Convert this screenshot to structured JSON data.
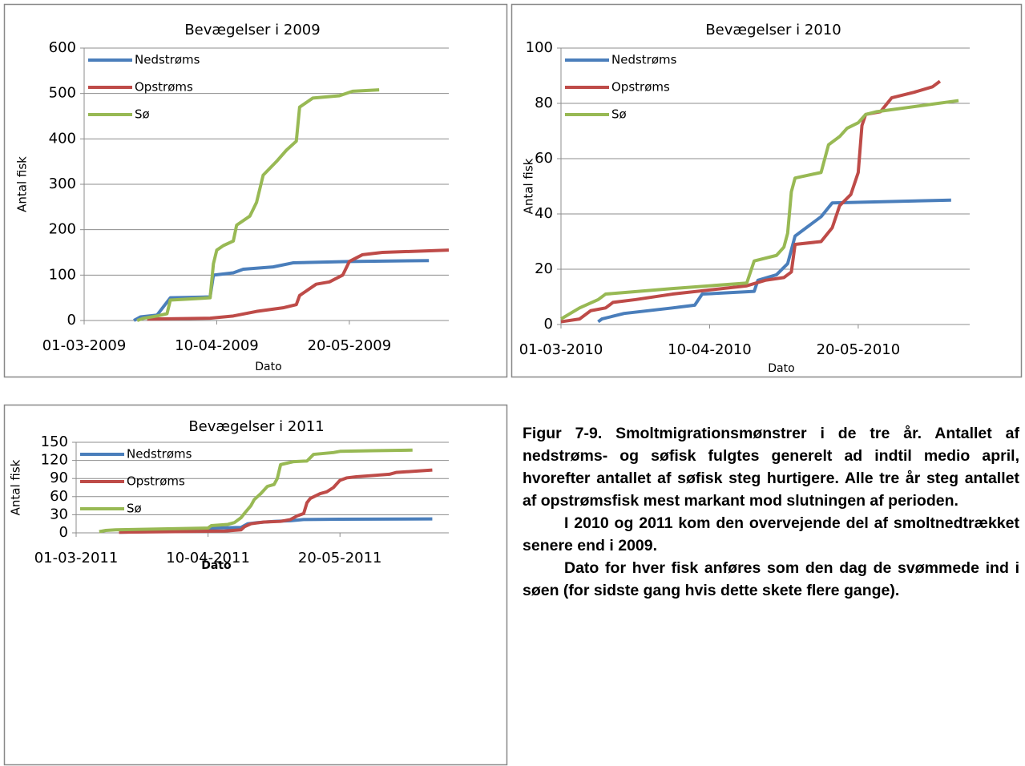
{
  "chart_data": [
    {
      "type": "line",
      "title": "Bevægelser i 2009",
      "xlabel": "Dato",
      "ylabel": "Antal fisk",
      "xlim": [
        "01-03-2009",
        "19-06-2009"
      ],
      "xticks": [
        "01-03-2009",
        "10-04-2009",
        "20-05-2009"
      ],
      "ylim": [
        0,
        600
      ],
      "yticks": [
        0,
        100,
        200,
        300,
        400,
        500,
        600
      ],
      "grid": true,
      "legend": "upper left",
      "series": [
        {
          "name": "Nedstrøms",
          "color": "#4a7ebb",
          "x": [
            "16-03-2009",
            "18-03-2009",
            "23-03-2009",
            "27-03-2009",
            "08-04-2009",
            "09-04-2009",
            "15-04-2009",
            "18-04-2009",
            "27-04-2009",
            "03-05-2009",
            "20-05-2009",
            "13-06-2009"
          ],
          "values": [
            0,
            8,
            12,
            50,
            52,
            100,
            105,
            113,
            118,
            127,
            130,
            132
          ]
        },
        {
          "name": "Opstrøms",
          "color": "#be4b48",
          "x": [
            "20-03-2009",
            "08-04-2009",
            "15-04-2009",
            "22-04-2009",
            "30-04-2009",
            "04-05-2009",
            "05-05-2009",
            "10-05-2009",
            "14-05-2009",
            "18-05-2009",
            "20-05-2009",
            "24-05-2009",
            "30-05-2009",
            "19-06-2009"
          ],
          "values": [
            3,
            5,
            10,
            20,
            28,
            35,
            55,
            80,
            85,
            100,
            130,
            145,
            150,
            155
          ]
        },
        {
          "name": "Sø",
          "color": "#98b954",
          "x": [
            "17-03-2009",
            "19-03-2009",
            "23-03-2009",
            "26-03-2009",
            "27-03-2009",
            "08-04-2009",
            "09-04-2009",
            "10-04-2009",
            "12-04-2009",
            "15-04-2009",
            "16-04-2009",
            "20-04-2009",
            "22-04-2009",
            "24-04-2009",
            "28-04-2009",
            "01-05-2009",
            "04-05-2009",
            "05-05-2009",
            "09-05-2009",
            "17-05-2009",
            "21-05-2009",
            "29-05-2009"
          ],
          "values": [
            0,
            5,
            10,
            15,
            45,
            50,
            125,
            155,
            165,
            175,
            210,
            230,
            260,
            320,
            350,
            375,
            395,
            470,
            490,
            495,
            505,
            508
          ]
        }
      ]
    },
    {
      "type": "line",
      "title": "Bevægelser i 2010",
      "xlabel": "Dato",
      "ylabel": "Antal fisk",
      "xlim": [
        "01-03-2010",
        "19-06-2010"
      ],
      "xticks": [
        "01-03-2010",
        "10-04-2010",
        "20-05-2010"
      ],
      "ylim": [
        0,
        100
      ],
      "yticks": [
        0,
        20,
        40,
        60,
        80,
        100
      ],
      "grid": true,
      "legend": "upper left",
      "series": [
        {
          "name": "Nedstrøms",
          "color": "#4a7ebb",
          "x": [
            "11-03-2010",
            "12-03-2010",
            "18-03-2010",
            "31-03-2010",
            "06-04-2010",
            "08-04-2010",
            "22-04-2010",
            "23-04-2010",
            "28-04-2010",
            "01-05-2010",
            "03-05-2010",
            "06-05-2010",
            "10-05-2010",
            "13-05-2010",
            "14-06-2010"
          ],
          "values": [
            1,
            2,
            4,
            6,
            7,
            11,
            12,
            16,
            18,
            22,
            32,
            35,
            39,
            44,
            45
          ]
        },
        {
          "name": "Opstrøms",
          "color": "#be4b48",
          "x": [
            "01-03-2010",
            "06-03-2010",
            "09-03-2010",
            "13-03-2010",
            "15-03-2010",
            "21-03-2010",
            "31-03-2010",
            "20-04-2010",
            "25-04-2010",
            "30-04-2010",
            "02-05-2010",
            "03-05-2010",
            "10-05-2010",
            "13-05-2010",
            "15-05-2010",
            "18-05-2010",
            "20-05-2010",
            "21-05-2010",
            "22-05-2010",
            "26-05-2010",
            "29-05-2010",
            "04-06-2010",
            "09-06-2010",
            "11-06-2010"
          ],
          "values": [
            1,
            2,
            5,
            6,
            8,
            9,
            11,
            14,
            16,
            17,
            19,
            29,
            30,
            35,
            43,
            47,
            55,
            72,
            76,
            77,
            82,
            84,
            86,
            88
          ]
        },
        {
          "name": "Sø",
          "color": "#98b954",
          "x": [
            "01-03-2010",
            "06-03-2010",
            "11-03-2010",
            "13-03-2010",
            "31-03-2010",
            "20-04-2010",
            "22-04-2010",
            "28-04-2010",
            "30-04-2010",
            "01-05-2010",
            "02-05-2010",
            "03-05-2010",
            "10-05-2010",
            "12-05-2010",
            "15-05-2010",
            "17-05-2010",
            "20-05-2010",
            "22-05-2010",
            "25-05-2010",
            "16-06-2010"
          ],
          "values": [
            2,
            6,
            9,
            11,
            13,
            15,
            23,
            25,
            28,
            33,
            48,
            53,
            55,
            65,
            68,
            71,
            73,
            76,
            77,
            81
          ]
        }
      ]
    },
    {
      "type": "line",
      "title": "Bevægelser i 2011",
      "xlabel": "Dato",
      "ylabel": "Antal fisk",
      "xlim": [
        "01-03-2011",
        "22-06-2011"
      ],
      "xticks": [
        "01-03-2011",
        "10-04-2011",
        "20-05-2011"
      ],
      "ylim": [
        0,
        150
      ],
      "yticks": [
        0,
        30,
        60,
        90,
        120,
        150
      ],
      "grid": true,
      "legend": "upper left",
      "series": [
        {
          "name": "Nedstrøms",
          "color": "#4a7ebb",
          "x": [
            "14-03-2011",
            "31-03-2011",
            "10-04-2011",
            "12-04-2011",
            "20-04-2011",
            "22-04-2011",
            "25-04-2011",
            "30-04-2011",
            "05-05-2011",
            "09-05-2011",
            "20-05-2011",
            "17-06-2011"
          ],
          "values": [
            1,
            3,
            6,
            8,
            9,
            15,
            17,
            19,
            20,
            22,
            22.5,
            23
          ]
        },
        {
          "name": "Opstrøms",
          "color": "#be4b48",
          "x": [
            "14-03-2011",
            "31-03-2011",
            "15-04-2011",
            "20-04-2011",
            "21-04-2011",
            "23-04-2011",
            "27-04-2011",
            "02-05-2011",
            "05-05-2011",
            "07-05-2011",
            "09-05-2011",
            "10-05-2011",
            "11-05-2011",
            "14-05-2011",
            "16-05-2011",
            "18-05-2011",
            "20-05-2011",
            "22-05-2011",
            "25-05-2011",
            "30-05-2011",
            "04-06-2011",
            "06-06-2011",
            "17-06-2011"
          ],
          "values": [
            1,
            2,
            3,
            5,
            10,
            15,
            18,
            19,
            22,
            28,
            32,
            50,
            57,
            65,
            68,
            75,
            87,
            91,
            93,
            95,
            97,
            100,
            104
          ]
        },
        {
          "name": "Sø",
          "color": "#98b954",
          "x": [
            "08-03-2011",
            "10-03-2011",
            "13-03-2011",
            "10-04-2011",
            "11-04-2011",
            "16-04-2011",
            "18-04-2011",
            "20-04-2011",
            "21-04-2011",
            "23-04-2011",
            "24-04-2011",
            "26-04-2011",
            "28-04-2011",
            "30-04-2011",
            "01-05-2011",
            "02-05-2011",
            "06-05-2011",
            "10-05-2011",
            "12-05-2011",
            "18-05-2011",
            "20-05-2011",
            "30-05-2011",
            "11-06-2011"
          ],
          "values": [
            2,
            4,
            5,
            8,
            12,
            14,
            17,
            25,
            32,
            45,
            55,
            65,
            77,
            80,
            90,
            113,
            118,
            119,
            130,
            133,
            135,
            136,
            137
          ]
        }
      ]
    }
  ],
  "caption": {
    "paragraphs": [
      "Figur 7-9. Smoltmigrationsmønstrer i de tre år. Antallet af nedstrøms- og søfisk fulgtes generelt ad indtil medio april, hvorefter antallet af søfisk steg hurtigere. Alle tre år steg antallet af opstrømsfisk mest markant mod slutningen af perioden.",
      "I 2010 og 2011 kom den overvejende del af smoltnedtrækket senere end i 2009.",
      "Dato for hver fisk anføres som den dag de svømmede ind i søen (for sidste gang hvis dette skete flere gange)."
    ]
  }
}
